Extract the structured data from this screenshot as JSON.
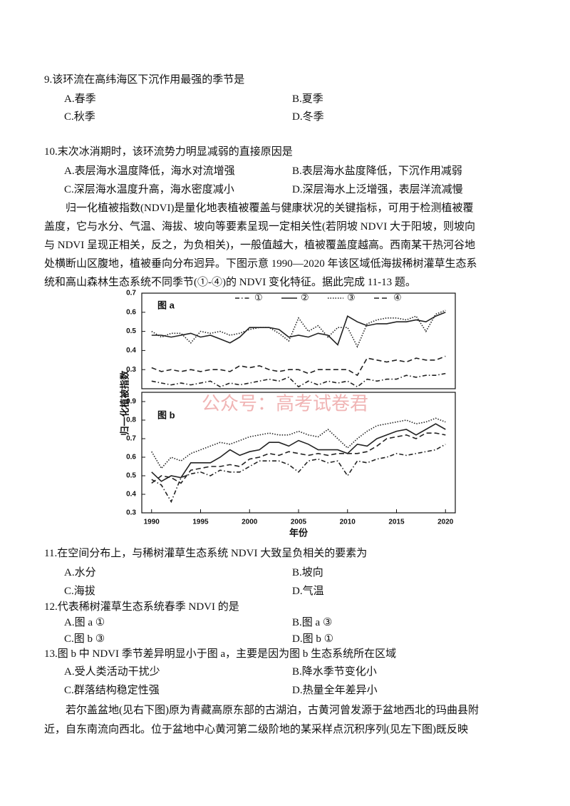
{
  "questions": [
    {
      "stem": "9.该环流在高纬海区下沉作用最强的季节是",
      "options": [
        "A.春季",
        "B.夏季",
        "C.秋季",
        "D.冬季"
      ]
    },
    {
      "stem": "10.末次冰消期时，该环流势力明显减弱的直接原因是",
      "options": [
        "A.表层海水温度降低，海水对流增强",
        "B.表层海水盐度降低，下沉作用减弱",
        "C.深层海水温度升高，海水密度减小",
        "D.深层海水上泛增强，表层洋流减慢"
      ]
    },
    {
      "stem": "11.在空间分布上，与稀树灌草生态系统 NDVI 大致呈负相关的要素为",
      "options": [
        "A.水分",
        "B.坡向",
        "C.海拔",
        "D.气温"
      ]
    },
    {
      "stem": "12.代表稀树灌草生态系统春季 NDVI 的是",
      "options": [
        "A.图 a ①",
        "B.图 a ③",
        "C.图 b ③",
        "D.图 b ①"
      ]
    },
    {
      "stem": "13.图 b 中 NDVI 季节差异明显小于图 a，主要是因为图 b 生态系统所在区域",
      "options": [
        "A.受人类活动干扰少",
        "B.降水季节变化小",
        "C.群落结构稳定性强",
        "D.热量全年差异小"
      ]
    }
  ],
  "passages": [
    {
      "lines": [
        "归一化植被指数(NDVI)是量化地表植被覆盖与健康状况的关键指标，可用于检测植被覆",
        "盖度，它与水分、气温、海拔、坡向等要素呈现一定相关性(若阴坡 NDVI 大于阳坡，则坡向",
        "与 NDVI 呈现正相关，反之，为负相关)，一般值越大，植被覆盖度越高。西南某干热河谷地",
        "处横断山区腹地，植被垂向分布迥异。下图示意 1990—2020 年该区域低海拔稀树灌草生态系",
        "统和高山森林生态系统不同季节(①-④)的 NDVI 变化特征。据此完成 11-13 题。"
      ]
    },
    {
      "lines": [
        "若尔盖盆地(见右下图)原为青藏高原东部的古湖泊，古黄河曾发源于盆地西北的玛曲县附",
        "近，自东南流向西北。位于盆地中心黄河第二级阶地的某采样点沉积序列(见左下图)既反映"
      ]
    }
  ],
  "watermark": "公众号：高考试卷君",
  "chart_data": [
    {
      "type": "line",
      "title": "图 a",
      "ylabel": "归一化植被指数",
      "legend": "top",
      "x": [
        1990,
        1991,
        1992,
        1993,
        1994,
        1995,
        1996,
        1997,
        1998,
        1999,
        2000,
        2001,
        2002,
        2003,
        2004,
        2005,
        2006,
        2007,
        2008,
        2009,
        2010,
        2011,
        2012,
        2013,
        2014,
        2015,
        2016,
        2017,
        2018,
        2019,
        2020
      ],
      "xlim": [
        1989,
        2021
      ],
      "ylim": [
        0.2,
        0.7
      ],
      "yticks": [
        0.3,
        0.4,
        0.5,
        0.6,
        0.7
      ],
      "series": [
        {
          "name": "①",
          "color": "#222222",
          "style": "dash-dot",
          "values": [
            0.24,
            0.23,
            0.22,
            0.23,
            0.22,
            0.23,
            0.24,
            0.21,
            0.23,
            0.22,
            0.23,
            0.24,
            0.25,
            0.24,
            0.26,
            0.21,
            0.24,
            0.22,
            0.24,
            0.23,
            0.24,
            0.21,
            0.25,
            0.24,
            0.25,
            0.25,
            0.27,
            0.26,
            0.27,
            0.27,
            0.28
          ]
        },
        {
          "name": "②",
          "color": "#222222",
          "style": "solid",
          "values": [
            0.48,
            0.48,
            0.47,
            0.48,
            0.49,
            0.47,
            0.48,
            0.46,
            0.44,
            0.47,
            0.52,
            0.52,
            0.52,
            0.51,
            0.47,
            0.48,
            0.47,
            0.49,
            0.48,
            0.43,
            0.58,
            0.55,
            0.53,
            0.54,
            0.54,
            0.55,
            0.55,
            0.56,
            0.55,
            0.58,
            0.6
          ]
        },
        {
          "name": "③",
          "color": "#222222",
          "style": "dotted",
          "values": [
            0.5,
            0.47,
            0.49,
            0.49,
            0.44,
            0.5,
            0.49,
            0.5,
            0.48,
            0.49,
            0.51,
            0.52,
            0.52,
            0.49,
            0.45,
            0.57,
            0.5,
            0.53,
            0.47,
            0.52,
            0.52,
            0.42,
            0.54,
            0.56,
            0.57,
            0.57,
            0.56,
            0.58,
            0.5,
            0.59,
            0.61
          ]
        },
        {
          "name": "④",
          "color": "#222222",
          "style": "dashed",
          "values": [
            0.31,
            0.29,
            0.3,
            0.29,
            0.3,
            0.29,
            0.3,
            0.3,
            0.29,
            0.32,
            0.31,
            0.32,
            0.3,
            0.29,
            0.3,
            0.3,
            0.28,
            0.3,
            0.3,
            0.3,
            0.3,
            0.27,
            0.36,
            0.35,
            0.34,
            0.35,
            0.34,
            0.36,
            0.35,
            0.35,
            0.37
          ]
        }
      ]
    },
    {
      "type": "line",
      "title": "图 b",
      "xlabel": "年份",
      "x": [
        1990,
        1991,
        1992,
        1993,
        1994,
        1995,
        1996,
        1997,
        1998,
        1999,
        2000,
        2001,
        2002,
        2003,
        2004,
        2005,
        2006,
        2007,
        2008,
        2009,
        2010,
        2011,
        2012,
        2013,
        2014,
        2015,
        2016,
        2017,
        2018,
        2019,
        2020
      ],
      "xlim": [
        1989,
        2021
      ],
      "xticks": [
        1990,
        1995,
        2000,
        2005,
        2010,
        2015,
        2020
      ],
      "ylim": [
        0.3,
        0.95
      ],
      "yticks": [
        0.3,
        0.4,
        0.5,
        0.6,
        0.7,
        0.8,
        0.9
      ],
      "series": [
        {
          "color": "#222222",
          "style": "dash-dot",
          "values": [
            0.48,
            0.45,
            0.36,
            0.49,
            0.51,
            0.52,
            0.5,
            0.53,
            0.52,
            0.52,
            0.55,
            0.58,
            0.58,
            0.58,
            0.56,
            0.52,
            0.58,
            0.59,
            0.57,
            0.58,
            0.5,
            0.58,
            0.57,
            0.59,
            0.6,
            0.62,
            0.61,
            0.62,
            0.63,
            0.64,
            0.67
          ]
        },
        {
          "color": "#222222",
          "style": "solid",
          "values": [
            0.52,
            0.47,
            0.5,
            0.49,
            0.57,
            0.57,
            0.57,
            0.6,
            0.64,
            0.61,
            0.63,
            0.64,
            0.68,
            0.68,
            0.66,
            0.69,
            0.67,
            0.64,
            0.64,
            0.64,
            0.62,
            0.67,
            0.66,
            0.7,
            0.72,
            0.74,
            0.75,
            0.72,
            0.75,
            0.78,
            0.75
          ]
        },
        {
          "color": "#222222",
          "style": "dotted",
          "values": [
            0.63,
            0.54,
            0.6,
            0.58,
            0.62,
            0.64,
            0.66,
            0.68,
            0.67,
            0.69,
            0.71,
            0.72,
            0.73,
            0.72,
            0.72,
            0.74,
            0.72,
            0.71,
            0.75,
            0.7,
            0.65,
            0.7,
            0.74,
            0.77,
            0.78,
            0.79,
            0.8,
            0.78,
            0.79,
            0.81,
            0.79
          ]
        },
        {
          "color": "#222222",
          "style": "dashed",
          "values": [
            0.46,
            0.5,
            0.49,
            0.46,
            0.53,
            0.54,
            0.55,
            0.55,
            0.56,
            0.55,
            0.59,
            0.6,
            0.62,
            0.61,
            0.63,
            0.62,
            0.61,
            0.62,
            0.61,
            0.62,
            0.62,
            0.62,
            0.63,
            0.66,
            0.7,
            0.71,
            0.72,
            0.7,
            0.73,
            0.73,
            0.72
          ]
        }
      ]
    }
  ]
}
